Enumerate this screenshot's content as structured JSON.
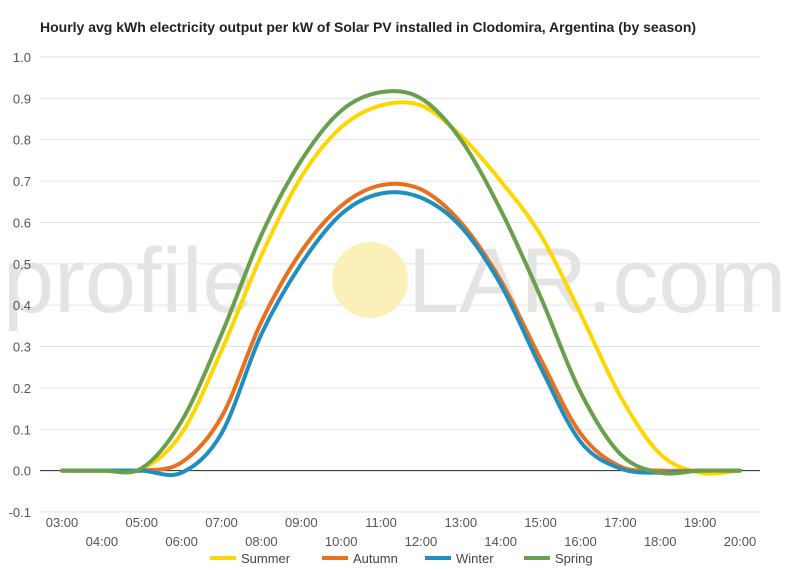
{
  "chart_data": {
    "type": "line",
    "title": "Hourly avg kWh electricity output per kW of Solar PV installed in Clodomira, Argentina (by season)",
    "xlabel": "",
    "ylabel": "",
    "ylim": [
      -0.1,
      1.0
    ],
    "y_ticks": [
      "1.0",
      "0.9",
      "0.8",
      "0.7",
      "0.6",
      "0.5",
      "0.4",
      "0.3",
      "0.2",
      "0.1",
      "0.0",
      "-0.1"
    ],
    "x": [
      "03:00",
      "04:00",
      "05:00",
      "06:00",
      "07:00",
      "08:00",
      "09:00",
      "10:00",
      "11:00",
      "12:00",
      "13:00",
      "14:00",
      "15:00",
      "16:00",
      "17:00",
      "18:00",
      "19:00",
      "20:00"
    ],
    "grid": true,
    "legend_position": "bottom",
    "watermark": "profileSOLAR.com",
    "series": [
      {
        "name": "Summer",
        "color": "#FFD700",
        "values": [
          0,
          0,
          0.004,
          0.09,
          0.29,
          0.52,
          0.71,
          0.83,
          0.883,
          0.883,
          0.81,
          0.7,
          0.57,
          0.38,
          0.18,
          0.04,
          -0.005,
          0
        ]
      },
      {
        "name": "Autumn",
        "color": "#E8701F",
        "values": [
          0,
          0,
          0,
          0.02,
          0.13,
          0.36,
          0.53,
          0.64,
          0.69,
          0.68,
          0.6,
          0.46,
          0.27,
          0.09,
          0.01,
          0,
          0,
          0
        ]
      },
      {
        "name": "Winter",
        "color": "#1F8FBF",
        "values": [
          0,
          0,
          0,
          -0.005,
          0.09,
          0.33,
          0.5,
          0.62,
          0.67,
          0.66,
          0.59,
          0.45,
          0.25,
          0.07,
          0.005,
          -0.005,
          0,
          0
        ]
      },
      {
        "name": "Spring",
        "color": "#6A9F4C",
        "values": [
          0,
          0,
          0.006,
          0.12,
          0.33,
          0.57,
          0.75,
          0.87,
          0.915,
          0.9,
          0.8,
          0.63,
          0.42,
          0.19,
          0.04,
          -0.005,
          0,
          0
        ]
      }
    ]
  }
}
